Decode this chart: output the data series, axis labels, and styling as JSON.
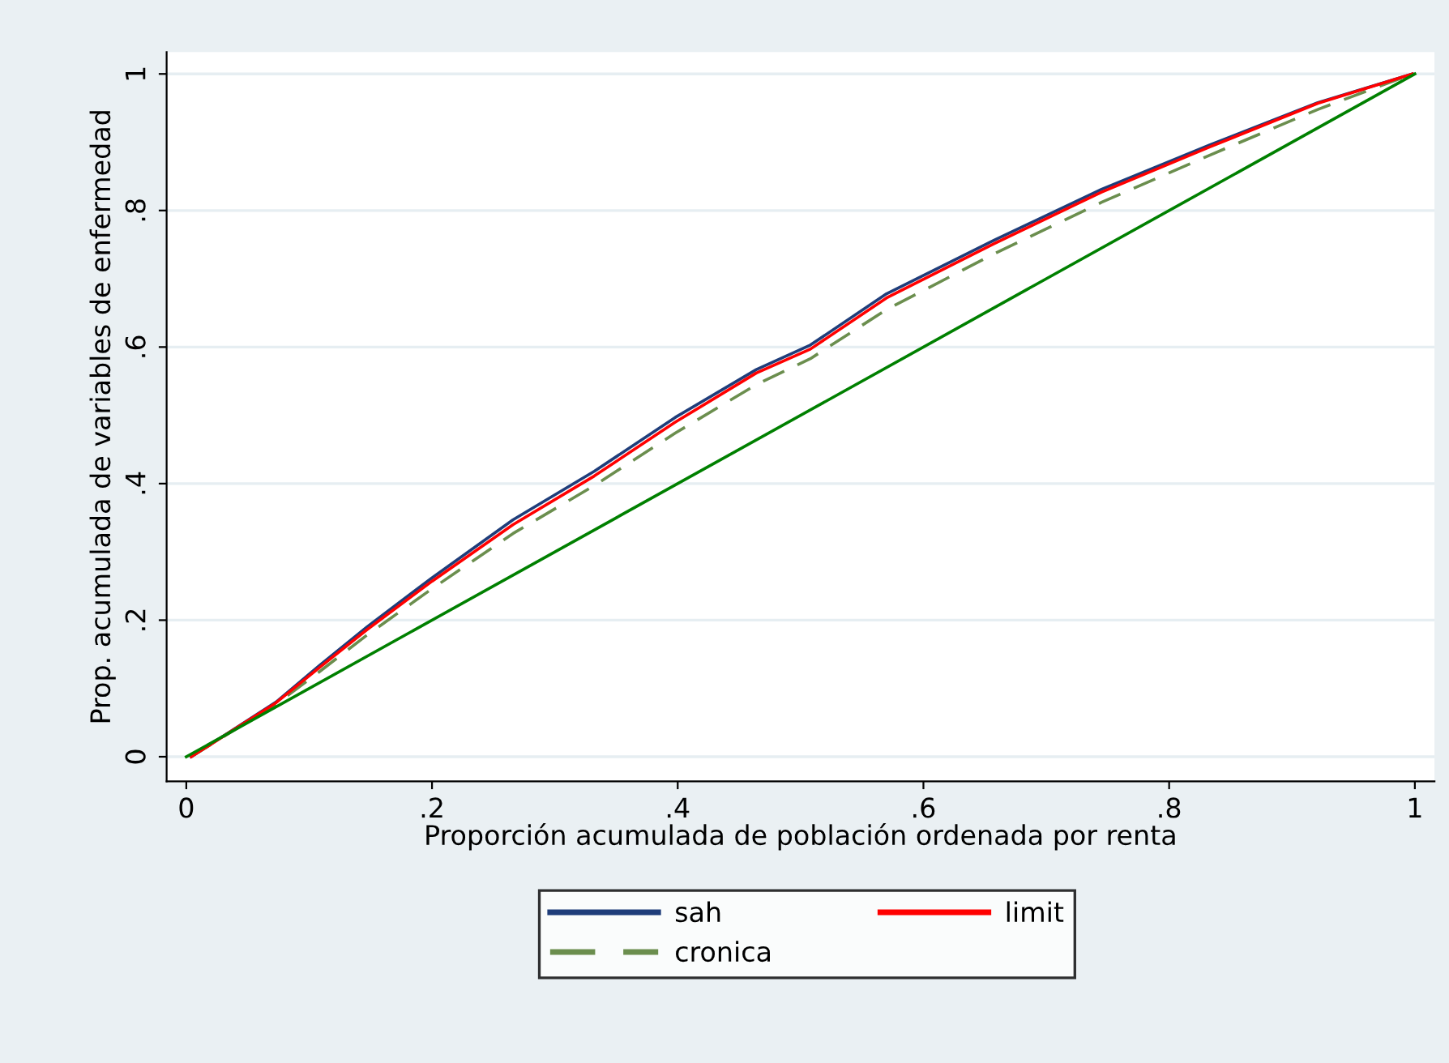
{
  "chart_data": {
    "type": "line",
    "xlabel": "Proporción acumulada de población ordenada por renta",
    "ylabel": "Prop. acumulada de variables de enfermedad",
    "x": [
      0.004,
      0.073,
      0.108,
      0.147,
      0.2,
      0.266,
      0.332,
      0.398,
      0.464,
      0.508,
      0.57,
      0.657,
      0.745,
      0.833,
      0.921,
      0.998
    ],
    "series": [
      {
        "name": "sah",
        "color": "#1f3d7a",
        "line_style": "solid",
        "values": [
          0,
          0.08,
          0.133,
          0.19,
          0.262,
          0.347,
          0.418,
          0.497,
          0.567,
          0.603,
          0.678,
          0.756,
          0.831,
          0.896,
          0.958,
          1.0
        ]
      },
      {
        "name": "cronica",
        "color": "#6b8e4e",
        "line_style": "dashed",
        "values": [
          0,
          0.077,
          0.124,
          0.178,
          0.246,
          0.327,
          0.397,
          0.474,
          0.545,
          0.583,
          0.655,
          0.736,
          0.812,
          0.881,
          0.948,
          1.0
        ]
      },
      {
        "name": "limit",
        "color": "#ff0000",
        "line_style": "solid",
        "values": [
          0,
          0.079,
          0.13,
          0.186,
          0.257,
          0.34,
          0.411,
          0.49,
          0.562,
          0.597,
          0.672,
          0.751,
          0.827,
          0.893,
          0.957,
          1.0
        ]
      },
      {
        "color": "#008000",
        "line_style": "solid",
        "x": [
          0,
          1
        ],
        "values": [
          0,
          1
        ]
      }
    ],
    "xlim": [
      -0.016,
      1.016
    ],
    "ylim": [
      -0.036,
      1.032
    ],
    "xticks": [
      0,
      {
        "value": 0.2,
        "label": ".2"
      },
      {
        "value": 0.4,
        "label": ".4"
      },
      {
        "value": 0.6,
        "label": ".6"
      },
      {
        "value": 0.8,
        "label": ".8"
      },
      1
    ],
    "yticks": [
      0,
      {
        "value": 0.2,
        "label": ".2"
      },
      {
        "value": 0.4,
        "label": ".4"
      },
      {
        "value": 0.6,
        "label": ".6"
      },
      {
        "value": 0.8,
        "label": ".8"
      },
      1
    ],
    "grid": "y",
    "legend": "bottom"
  }
}
